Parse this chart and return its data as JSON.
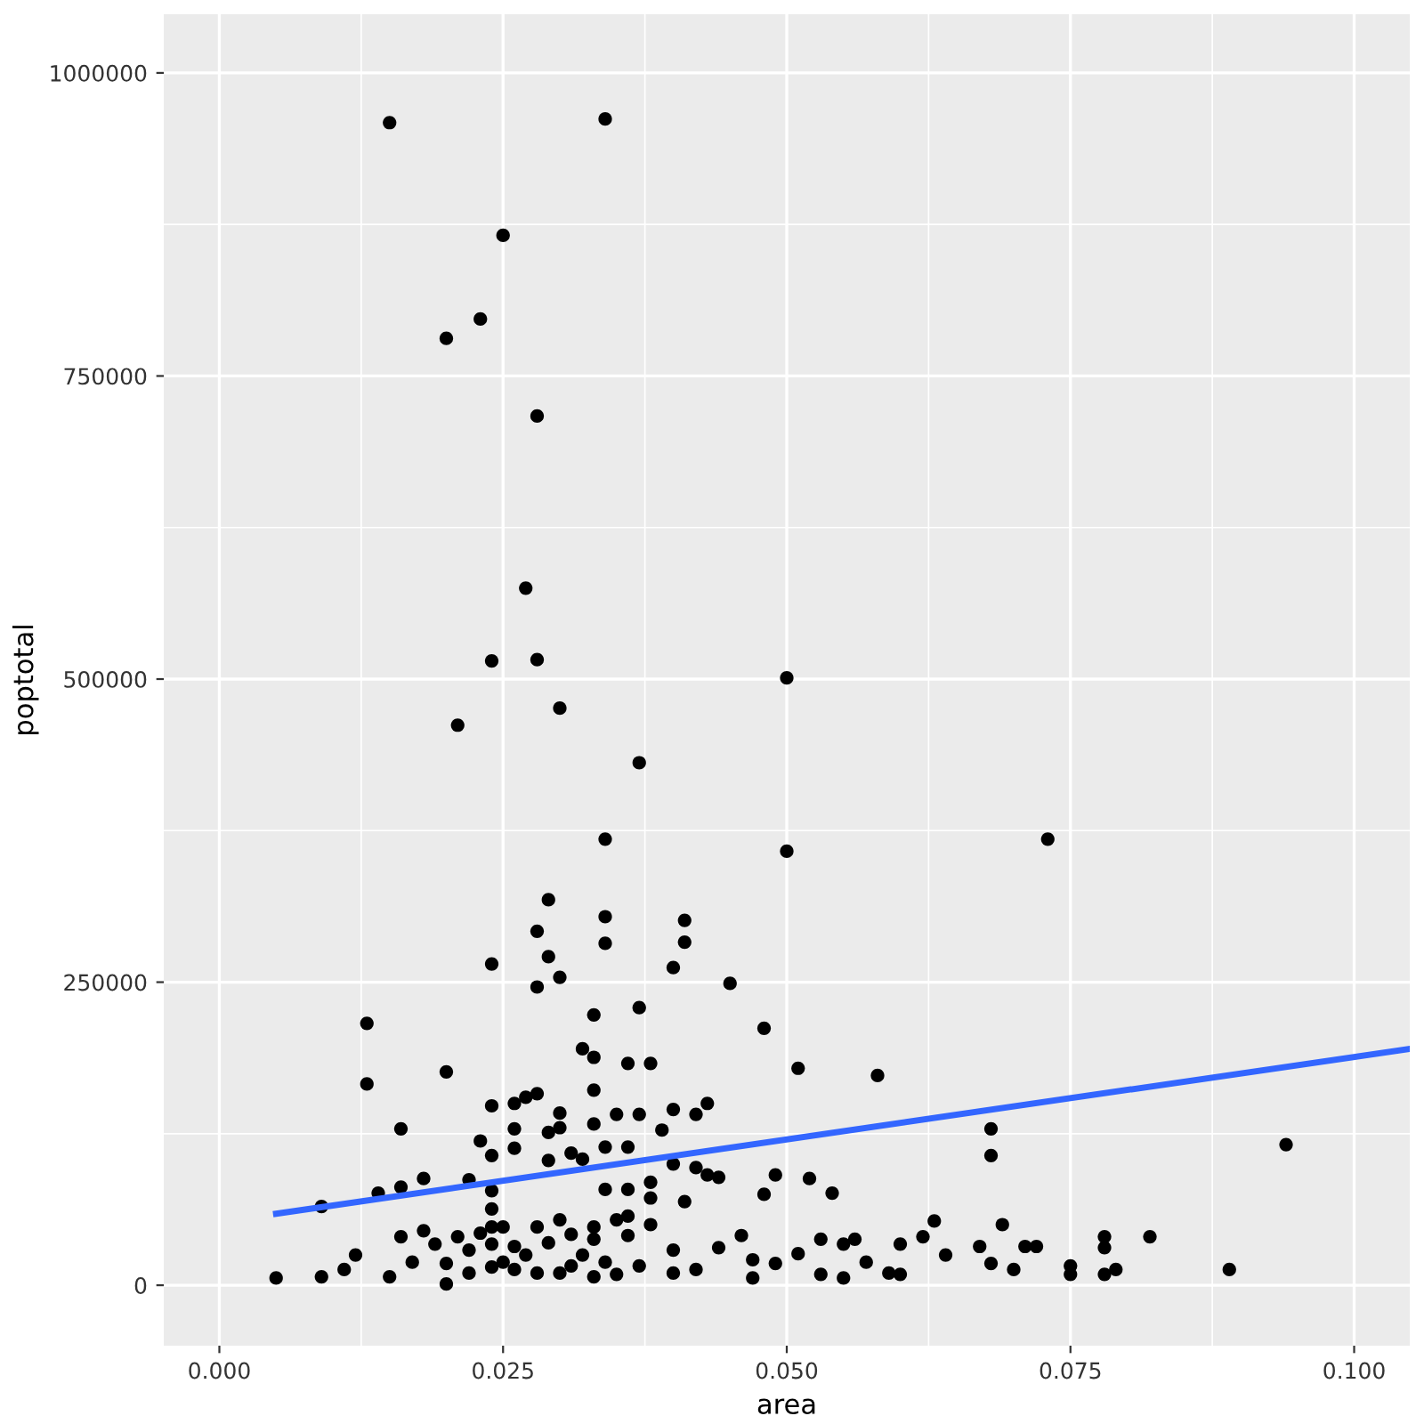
{
  "chart_data": {
    "type": "scatter",
    "xlabel": "area",
    "ylabel": "poptotal",
    "xlim": [
      -0.0049,
      0.1049
    ],
    "ylim": [
      -49853,
      1048387
    ],
    "xticks": [
      {
        "value": 0,
        "label": "0.000"
      },
      {
        "value": 0.025,
        "label": "0.025"
      },
      {
        "value": 0.05,
        "label": "0.050"
      },
      {
        "value": 0.075,
        "label": "0.075"
      },
      {
        "value": 0.1,
        "label": "0.100"
      }
    ],
    "yticks": [
      0,
      250000,
      500000,
      750000,
      1000000
    ],
    "grid": true,
    "legend": false,
    "marker": "circle",
    "series": [
      {
        "color": "#000000",
        "x": [
          0.015,
          0.034,
          0.025,
          0.023,
          0.02,
          0.028,
          0.027,
          0.024,
          0.028,
          0.021,
          0.03,
          0.05,
          0.037,
          0.034,
          0.05,
          0.073,
          0.034,
          0.041,
          0.034,
          0.041,
          0.029,
          0.028,
          0.029,
          0.04,
          0.024,
          0.028,
          0.03,
          0.045,
          0.033,
          0.037,
          0.013,
          0.048,
          0.032,
          0.033,
          0.036,
          0.038,
          0.02,
          0.051,
          0.058,
          0.013,
          0.033,
          0.028,
          0.027,
          0.024,
          0.026,
          0.043,
          0.03,
          0.035,
          0.037,
          0.04,
          0.042,
          0.016,
          0.026,
          0.029,
          0.03,
          0.039,
          0.033,
          0.068,
          0.023,
          0.094,
          0.034,
          0.036,
          0.026,
          0.031,
          0.042,
          0.04,
          0.068,
          0.032,
          0.029,
          0.024,
          0.022,
          0.018,
          0.014,
          0.016,
          0.009,
          0.036,
          0.038,
          0.043,
          0.044,
          0.049,
          0.052,
          0.054,
          0.041,
          0.048,
          0.034,
          0.038,
          0.063,
          0.069,
          0.005,
          0.009,
          0.011,
          0.012,
          0.015,
          0.017,
          0.02,
          0.022,
          0.024,
          0.026,
          0.029,
          0.031,
          0.033,
          0.036,
          0.04,
          0.044,
          0.046,
          0.047,
          0.049,
          0.051,
          0.053,
          0.055,
          0.056,
          0.057,
          0.059,
          0.06,
          0.062,
          0.064,
          0.067,
          0.068,
          0.07,
          0.071,
          0.072,
          0.075,
          0.075,
          0.078,
          0.078,
          0.078,
          0.079,
          0.082,
          0.089,
          0.047,
          0.053,
          0.055,
          0.06,
          0.02,
          0.022,
          0.026,
          0.03,
          0.033,
          0.035,
          0.042,
          0.04,
          0.019,
          0.021,
          0.024,
          0.024,
          0.024,
          0.025,
          0.025,
          0.024,
          0.027,
          0.028,
          0.031,
          0.034,
          0.032,
          0.037,
          0.033,
          0.035,
          0.038,
          0.036,
          0.03,
          0.028,
          0.023,
          0.018,
          0.016
        ],
        "values": [
          959000,
          962000,
          866000,
          797000,
          781000,
          717000,
          575000,
          515000,
          516000,
          462000,
          476000,
          501000,
          431000,
          368000,
          358000,
          368000,
          304000,
          301000,
          282000,
          283000,
          318000,
          292000,
          271000,
          262000,
          265000,
          246000,
          254000,
          249000,
          223000,
          229000,
          216000,
          212000,
          195000,
          188000,
          183000,
          183000,
          176000,
          179000,
          173000,
          166000,
          161000,
          158000,
          155000,
          148000,
          150000,
          150000,
          142000,
          141000,
          141000,
          145000,
          141000,
          129000,
          129000,
          126000,
          130000,
          128000,
          133000,
          129000,
          119000,
          116000,
          114000,
          114000,
          113000,
          109000,
          97000,
          100000,
          107000,
          104000,
          103000,
          107000,
          87000,
          88000,
          76000,
          81000,
          65000,
          79000,
          85000,
          91000,
          89000,
          91000,
          88000,
          76000,
          69000,
          75000,
          79000,
          72000,
          53000,
          50000,
          6000,
          7000,
          13000,
          25000,
          7000,
          19000,
          18000,
          29000,
          34000,
          32000,
          35000,
          42000,
          38000,
          41000,
          29000,
          31000,
          41000,
          21000,
          18000,
          26000,
          38000,
          34000,
          38000,
          19000,
          10000,
          34000,
          40000,
          25000,
          32000,
          18000,
          13000,
          32000,
          32000,
          16000,
          9000,
          40000,
          31000,
          9000,
          13000,
          40000,
          13000,
          6000,
          9000,
          6000,
          9000,
          1000,
          10000,
          13000,
          10000,
          7000,
          9000,
          13000,
          10000,
          34000,
          40000,
          48000,
          63000,
          78000,
          48000,
          19000,
          15000,
          25000,
          10000,
          16000,
          19000,
          25000,
          16000,
          48000,
          54000,
          50000,
          57000,
          54000,
          48000,
          43000,
          45000,
          40000
        ]
      },
      {
        "type": "line",
        "color": "#3366ff",
        "marker": "none",
        "line_style": "solid",
        "x": [
          0.005,
          0.1049
        ],
        "values": [
          59000,
          195000
        ]
      }
    ]
  }
}
